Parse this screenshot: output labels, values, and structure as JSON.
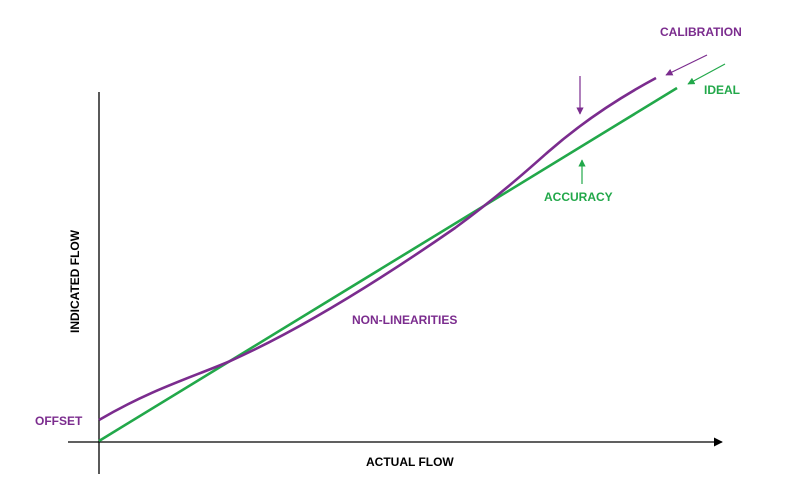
{
  "colors": {
    "axis": "#000000",
    "ideal": "#22a84a",
    "measured": "#7b2c8e"
  },
  "axes": {
    "x_label": "ACTUAL FLOW",
    "y_label": "INDICATED FLOW"
  },
  "labels": {
    "calibration": "CALIBRATION",
    "ideal": "IDEAL",
    "accuracy": "ACCURACY",
    "non_linearities": "NON-LINEARITIES",
    "offset": "OFFSET"
  }
}
